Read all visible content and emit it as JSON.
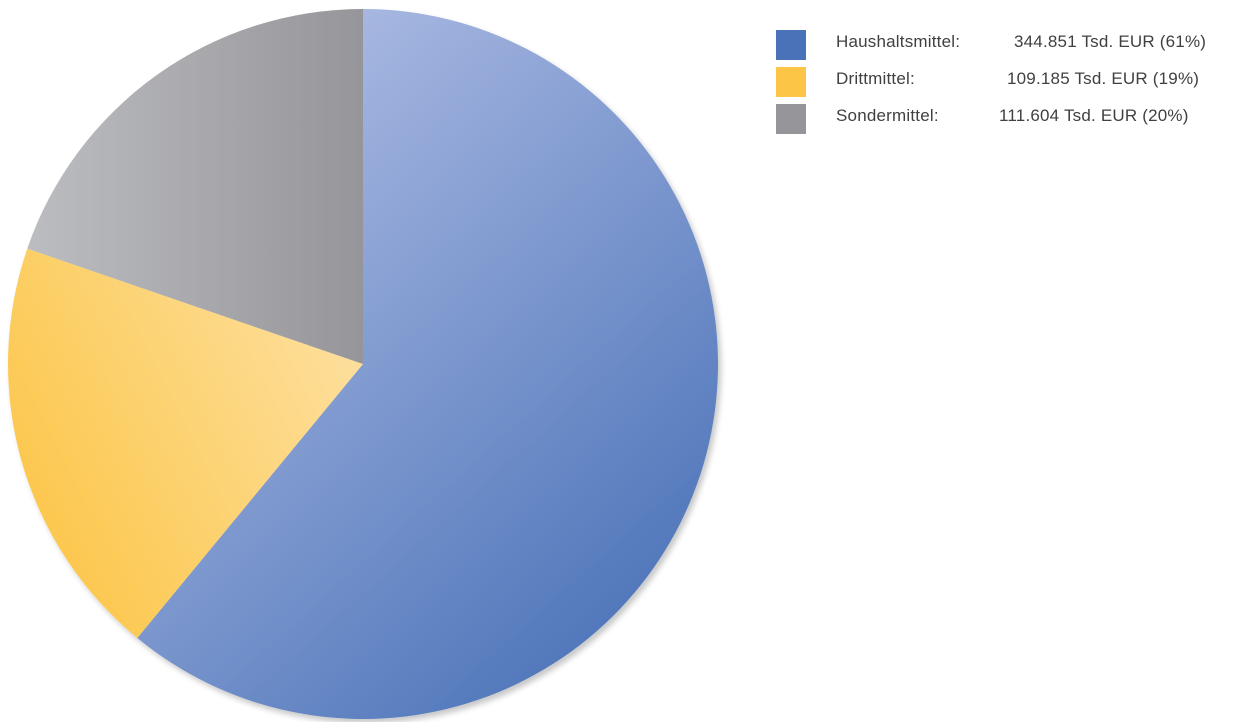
{
  "chart_data": {
    "type": "pie",
    "title": "",
    "unit": "Tsd. EUR",
    "series": [
      {
        "name": "Haushaltsmittel",
        "label": "Haushaltsmittel:",
        "value": 344851,
        "value_text": "344.851 Tsd. EUR (61%)",
        "percent": 61,
        "color": "#4a72b8",
        "color_light": "#b3c0e6"
      },
      {
        "name": "Drittmittel",
        "label": "Drittmittel:",
        "value": 109185,
        "value_text": "109.185 Tsd. EUR (19%)",
        "percent": 19,
        "color": "#fcc546",
        "color_light": "#fde0a0"
      },
      {
        "name": "Sondermittel",
        "label": "Sondermittel:",
        "value": 111604,
        "value_text": "111.604 Tsd. EUR (20%)",
        "percent": 20,
        "color": "#96969a",
        "color_light": "#bcbdc0"
      }
    ],
    "legend_position": "top-right",
    "start_angle": "12 o'clock",
    "direction": "clockwise"
  }
}
